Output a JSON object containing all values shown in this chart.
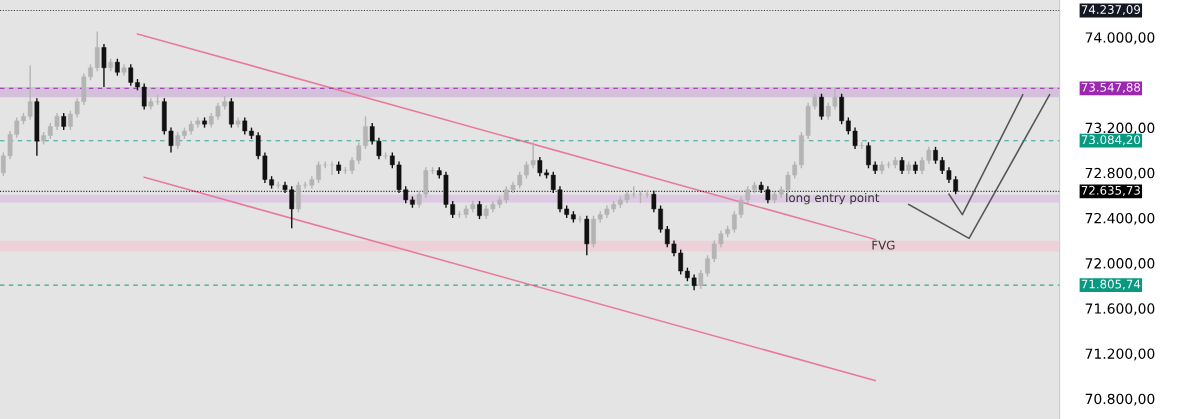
{
  "chart_data": {
    "type": "candlestick",
    "categories": [
      null,
      null,
      null,
      null,
      null,
      null,
      null,
      null,
      null,
      null,
      null,
      null,
      null,
      null,
      null,
      null,
      null,
      null,
      null,
      null,
      null,
      null,
      null,
      null,
      null,
      null,
      null,
      null,
      null,
      null,
      null,
      null,
      null,
      null,
      null,
      null,
      null,
      null,
      null,
      null,
      null,
      null,
      null,
      null,
      null,
      null,
      null,
      null,
      null,
      null,
      null,
      null,
      null,
      null,
      null,
      null,
      null,
      null,
      null,
      null,
      null,
      null,
      null,
      null,
      null,
      null,
      null,
      null,
      null,
      null,
      null,
      null,
      null,
      null,
      null,
      null,
      null,
      null,
      null,
      null,
      null,
      null,
      null,
      null,
      null,
      null,
      null,
      null,
      null,
      null,
      null,
      null,
      null,
      null,
      null,
      null,
      null,
      null,
      null,
      null,
      null,
      null,
      null,
      null,
      null,
      null,
      null,
      null,
      null,
      null,
      null,
      null,
      null,
      null,
      null,
      null,
      null,
      null,
      null,
      null,
      null,
      null,
      null,
      null,
      null,
      null,
      null,
      null,
      null,
      null,
      null,
      null,
      null,
      null,
      null,
      null,
      null,
      null,
      null,
      null,
      null,
      null,
      null,
      null,
      null,
      null,
      null,
      null,
      null,
      null,
      null,
      null,
      null,
      null,
      null,
      null,
      null
    ],
    "ohlc": [
      [
        72800,
        72980,
        72770,
        72950
      ],
      [
        72950,
        73170,
        72920,
        73140
      ],
      [
        73140,
        73290,
        73110,
        73260
      ],
      [
        73260,
        73330,
        73230,
        73300
      ],
      [
        73300,
        73750,
        73270,
        73430
      ],
      [
        73430,
        73460,
        72950,
        73080
      ],
      [
        73080,
        73160,
        73050,
        73130
      ],
      [
        73130,
        73240,
        73100,
        73210
      ],
      [
        73210,
        73330,
        73180,
        73300
      ],
      [
        73300,
        73330,
        73180,
        73210
      ],
      [
        73210,
        73350,
        73180,
        73320
      ],
      [
        73320,
        73460,
        73290,
        73430
      ],
      [
        73430,
        73680,
        73400,
        73650
      ],
      [
        73650,
        73760,
        73620,
        73730
      ],
      [
        73730,
        74050,
        73700,
        73910
      ],
      [
        73910,
        73940,
        73560,
        73730
      ],
      [
        73730,
        73810,
        73700,
        73780
      ],
      [
        73780,
        73810,
        73660,
        73690
      ],
      [
        73690,
        73760,
        73660,
        73730
      ],
      [
        73730,
        73760,
        73570,
        73600
      ],
      [
        73600,
        73630,
        73530,
        73560
      ],
      [
        73560,
        73590,
        73360,
        73390
      ],
      [
        73390,
        73460,
        73360,
        73430
      ],
      [
        73430,
        73490,
        73400,
        73430
      ],
      [
        73430,
        73460,
        73140,
        73170
      ],
      [
        73170,
        73200,
        72980,
        73040
      ],
      [
        73040,
        73160,
        73010,
        73130
      ],
      [
        73130,
        73200,
        73100,
        73170
      ],
      [
        73170,
        73260,
        73140,
        73230
      ],
      [
        73230,
        73290,
        73200,
        73260
      ],
      [
        73260,
        73290,
        73200,
        73230
      ],
      [
        73230,
        73330,
        73200,
        73300
      ],
      [
        73300,
        73420,
        73270,
        73390
      ],
      [
        73390,
        73480,
        73360,
        73430
      ],
      [
        73430,
        73460,
        73200,
        73230
      ],
      [
        73230,
        73290,
        73200,
        73260
      ],
      [
        73260,
        73290,
        73140,
        73170
      ],
      [
        73170,
        73200,
        73100,
        73130
      ],
      [
        73130,
        73160,
        72920,
        72950
      ],
      [
        72950,
        72980,
        72710,
        72740
      ],
      [
        72740,
        72770,
        72660,
        72690
      ],
      [
        72690,
        72720,
        72660,
        72690
      ],
      [
        72690,
        72720,
        72620,
        72650
      ],
      [
        72650,
        72680,
        72310,
        72480
      ],
      [
        72480,
        72720,
        72450,
        72690
      ],
      [
        72690,
        72720,
        72660,
        72690
      ],
      [
        72690,
        72770,
        72660,
        72740
      ],
      [
        72740,
        72900,
        72710,
        72870
      ],
      [
        72870,
        72900,
        72840,
        72870
      ],
      [
        72870,
        72900,
        72780,
        72870
      ],
      [
        72870,
        72900,
        72790,
        72820
      ],
      [
        72820,
        72850,
        72790,
        72820
      ],
      [
        72820,
        72940,
        72790,
        72910
      ],
      [
        72910,
        73070,
        72880,
        73040
      ],
      [
        73040,
        73300,
        73010,
        73210
      ],
      [
        73210,
        73240,
        73050,
        73080
      ],
      [
        73080,
        73110,
        72920,
        72950
      ],
      [
        72950,
        72980,
        72920,
        72950
      ],
      [
        72950,
        72980,
        72840,
        72870
      ],
      [
        72870,
        72900,
        72620,
        72650
      ],
      [
        72650,
        72680,
        72530,
        72560
      ],
      [
        72560,
        72590,
        72490,
        72520
      ],
      [
        72520,
        72640,
        72490,
        72610
      ],
      [
        72610,
        72850,
        72580,
        72820
      ],
      [
        72820,
        72850,
        72790,
        72820
      ],
      [
        72820,
        72850,
        72750,
        72780
      ],
      [
        72780,
        72810,
        72490,
        72520
      ],
      [
        72520,
        72550,
        72400,
        72430
      ],
      [
        72430,
        72460,
        72400,
        72430
      ],
      [
        72430,
        72510,
        72400,
        72480
      ],
      [
        72480,
        72550,
        72450,
        72520
      ],
      [
        72520,
        72550,
        72390,
        72420
      ],
      [
        72420,
        72510,
        72390,
        72480
      ],
      [
        72480,
        72550,
        72450,
        72520
      ],
      [
        72520,
        72590,
        72490,
        72560
      ],
      [
        72560,
        72680,
        72530,
        72650
      ],
      [
        72650,
        72720,
        72620,
        72690
      ],
      [
        72690,
        72810,
        72660,
        72780
      ],
      [
        72780,
        72900,
        72750,
        72870
      ],
      [
        72870,
        73070,
        72840,
        72910
      ],
      [
        72910,
        72940,
        72770,
        72800
      ],
      [
        72800,
        72830,
        72750,
        72780
      ],
      [
        72780,
        72810,
        72620,
        72650
      ],
      [
        72650,
        72680,
        72450,
        72480
      ],
      [
        72480,
        72510,
        72400,
        72430
      ],
      [
        72430,
        72460,
        72360,
        72390
      ],
      [
        72390,
        72420,
        72360,
        72390
      ],
      [
        72390,
        72420,
        72070,
        72170
      ],
      [
        72170,
        72420,
        72140,
        72390
      ],
      [
        72390,
        72460,
        72360,
        72430
      ],
      [
        72430,
        72510,
        72400,
        72480
      ],
      [
        72480,
        72550,
        72450,
        72520
      ],
      [
        72520,
        72590,
        72490,
        72560
      ],
      [
        72560,
        72640,
        72530,
        72610
      ],
      [
        72610,
        72680,
        72580,
        72610
      ],
      [
        72610,
        72640,
        72530,
        72610
      ],
      [
        72610,
        72640,
        72580,
        72610
      ],
      [
        72610,
        72640,
        72450,
        72480
      ],
      [
        72480,
        72510,
        72270,
        72300
      ],
      [
        72300,
        72330,
        72140,
        72170
      ],
      [
        72170,
        72200,
        72060,
        72090
      ],
      [
        72090,
        72120,
        71900,
        71930
      ],
      [
        71930,
        71960,
        71840,
        71870
      ],
      [
        71870,
        71900,
        71760,
        71800
      ],
      [
        71800,
        71940,
        71770,
        71910
      ],
      [
        71910,
        72070,
        71880,
        72040
      ],
      [
        72040,
        72200,
        72010,
        72170
      ],
      [
        72170,
        72290,
        72140,
        72260
      ],
      [
        72260,
        72330,
        72230,
        72300
      ],
      [
        72300,
        72460,
        72270,
        72430
      ],
      [
        72430,
        72590,
        72400,
        72560
      ],
      [
        72560,
        72680,
        72530,
        72650
      ],
      [
        72650,
        72720,
        72620,
        72690
      ],
      [
        72690,
        72720,
        72620,
        72650
      ],
      [
        72650,
        72680,
        72530,
        72560
      ],
      [
        72560,
        72640,
        72530,
        72610
      ],
      [
        72610,
        72680,
        72580,
        72650
      ],
      [
        72650,
        72810,
        72620,
        72780
      ],
      [
        72780,
        72900,
        72750,
        72870
      ],
      [
        72870,
        73160,
        72840,
        73130
      ],
      [
        73130,
        73420,
        73100,
        73390
      ],
      [
        73390,
        73500,
        73360,
        73470
      ],
      [
        73470,
        73500,
        73270,
        73300
      ],
      [
        73300,
        73420,
        73270,
        73390
      ],
      [
        73390,
        73550,
        73360,
        73470
      ],
      [
        73470,
        73500,
        73230,
        73260
      ],
      [
        73260,
        73290,
        73140,
        73170
      ],
      [
        73170,
        73200,
        73010,
        73040
      ],
      [
        73040,
        73070,
        73010,
        73040
      ],
      [
        73040,
        73070,
        72840,
        72870
      ],
      [
        72870,
        72900,
        72790,
        72820
      ],
      [
        72820,
        72900,
        72790,
        72870
      ],
      [
        72870,
        72900,
        72840,
        72870
      ],
      [
        72870,
        72940,
        72840,
        72910
      ],
      [
        72910,
        72940,
        72790,
        72820
      ],
      [
        72820,
        72900,
        72790,
        72870
      ],
      [
        72870,
        72900,
        72790,
        72820
      ],
      [
        72820,
        72940,
        72790,
        72910
      ],
      [
        72910,
        73030,
        72880,
        73000
      ],
      [
        73000,
        73030,
        72880,
        72910
      ],
      [
        72910,
        72940,
        72790,
        72820
      ],
      [
        72820,
        72850,
        72710,
        72740
      ],
      [
        72740,
        72770,
        72610,
        72636
      ],
      null,
      null,
      null,
      null,
      null,
      null,
      null,
      null,
      null,
      null,
      null,
      null,
      null,
      null
    ],
    "series": [
      {
        "type": "line",
        "color": "#e8799a",
        "values": [
          null,
          null,
          null,
          null,
          null,
          null,
          null,
          null,
          null,
          null,
          null,
          null,
          null,
          null,
          null,
          null,
          null,
          null,
          null,
          null,
          74030,
          null,
          null,
          null,
          null,
          null,
          null,
          null,
          null,
          null,
          null,
          null,
          null,
          null,
          null,
          null,
          null,
          null,
          null,
          null,
          null,
          null,
          null,
          null,
          null,
          null,
          null,
          null,
          null,
          null,
          null,
          null,
          null,
          null,
          null,
          null,
          null,
          null,
          null,
          null,
          null,
          null,
          null,
          null,
          null,
          null,
          null,
          null,
          null,
          null,
          null,
          null,
          null,
          null,
          null,
          null,
          null,
          null,
          null,
          null,
          null,
          null,
          null,
          null,
          null,
          null,
          null,
          null,
          null,
          null,
          null,
          null,
          null,
          null,
          null,
          null,
          null,
          null,
          null,
          null,
          null,
          null,
          null,
          null,
          null,
          null,
          null,
          null,
          null,
          null,
          null,
          null,
          null,
          null,
          null,
          null,
          null,
          null,
          null,
          null,
          null,
          null,
          null,
          null,
          null,
          null,
          null,
          null,
          null,
          null,
          72210,
          null,
          null,
          null,
          null,
          null,
          null,
          null,
          null,
          null,
          null,
          null,
          null,
          null,
          null,
          null,
          null,
          null,
          null,
          null,
          null,
          null,
          null,
          null,
          null,
          null,
          null
        ]
      },
      {
        "type": "line",
        "color": "#e8799a",
        "values": [
          null,
          null,
          null,
          null,
          null,
          null,
          null,
          null,
          null,
          null,
          null,
          null,
          null,
          null,
          null,
          null,
          null,
          null,
          null,
          null,
          null,
          72760,
          null,
          null,
          null,
          null,
          null,
          null,
          null,
          null,
          null,
          null,
          null,
          null,
          null,
          null,
          null,
          null,
          null,
          null,
          null,
          null,
          null,
          null,
          null,
          null,
          null,
          null,
          null,
          null,
          null,
          null,
          null,
          null,
          null,
          null,
          null,
          null,
          null,
          null,
          null,
          null,
          null,
          null,
          null,
          null,
          null,
          null,
          null,
          null,
          null,
          null,
          null,
          null,
          null,
          null,
          null,
          null,
          null,
          null,
          null,
          null,
          null,
          null,
          null,
          null,
          null,
          null,
          null,
          null,
          null,
          null,
          null,
          null,
          null,
          null,
          null,
          null,
          null,
          null,
          null,
          null,
          null,
          null,
          null,
          null,
          null,
          null,
          null,
          null,
          null,
          null,
          null,
          null,
          null,
          null,
          null,
          null,
          null,
          null,
          null,
          null,
          null,
          null,
          null,
          null,
          null,
          null,
          null,
          null,
          70960,
          null,
          null,
          null,
          null,
          null,
          null,
          null,
          null,
          null,
          null,
          null,
          null,
          null,
          null,
          null,
          null,
          null,
          null,
          null,
          null,
          null,
          null,
          null,
          null,
          null,
          null
        ]
      },
      {
        "type": "line",
        "color": "#555555",
        "values": [
          null,
          null,
          null,
          null,
          null,
          null,
          null,
          null,
          null,
          null,
          null,
          null,
          null,
          null,
          null,
          null,
          null,
          null,
          null,
          null,
          null,
          null,
          null,
          null,
          null,
          null,
          null,
          null,
          null,
          null,
          null,
          null,
          null,
          null,
          null,
          null,
          null,
          null,
          null,
          null,
          null,
          null,
          null,
          null,
          null,
          null,
          null,
          null,
          null,
          null,
          null,
          null,
          null,
          null,
          null,
          null,
          null,
          null,
          null,
          null,
          null,
          null,
          null,
          null,
          null,
          null,
          null,
          null,
          null,
          null,
          null,
          null,
          null,
          null,
          null,
          null,
          null,
          null,
          null,
          null,
          null,
          null,
          null,
          null,
          null,
          null,
          null,
          null,
          null,
          null,
          null,
          null,
          null,
          null,
          null,
          null,
          null,
          null,
          null,
          null,
          null,
          null,
          null,
          null,
          null,
          null,
          null,
          null,
          null,
          null,
          null,
          null,
          null,
          null,
          null,
          null,
          null,
          null,
          null,
          null,
          null,
          null,
          null,
          null,
          null,
          null,
          null,
          null,
          null,
          null,
          null,
          null,
          null,
          null,
          null,
          null,
          null,
          null,
          null,
          null,
          null,
          72610,
          null,
          72430,
          null,
          null,
          null,
          null,
          null,
          null,
          null,
          null,
          73490,
          null,
          null,
          null,
          null
        ]
      },
      {
        "type": "line",
        "color": "#555555",
        "values": [
          null,
          null,
          null,
          null,
          null,
          null,
          null,
          null,
          null,
          null,
          null,
          null,
          null,
          null,
          null,
          null,
          null,
          null,
          null,
          null,
          null,
          null,
          null,
          null,
          null,
          null,
          null,
          null,
          null,
          null,
          null,
          null,
          null,
          null,
          null,
          null,
          null,
          null,
          null,
          null,
          null,
          null,
          null,
          null,
          null,
          null,
          null,
          null,
          null,
          null,
          null,
          null,
          null,
          null,
          null,
          null,
          null,
          null,
          null,
          null,
          null,
          null,
          null,
          null,
          null,
          null,
          null,
          null,
          null,
          null,
          null,
          null,
          null,
          null,
          null,
          null,
          null,
          null,
          null,
          null,
          null,
          null,
          null,
          null,
          null,
          null,
          null,
          null,
          null,
          null,
          null,
          null,
          null,
          null,
          null,
          null,
          null,
          null,
          null,
          null,
          null,
          null,
          null,
          null,
          null,
          null,
          null,
          null,
          null,
          null,
          null,
          null,
          null,
          null,
          null,
          null,
          null,
          null,
          null,
          null,
          null,
          null,
          null,
          null,
          null,
          null,
          null,
          null,
          null,
          null,
          null,
          null,
          null,
          null,
          null,
          72520,
          null,
          null,
          null,
          null,
          null,
          null,
          null,
          null,
          72220,
          null,
          null,
          null,
          null,
          null,
          null,
          null,
          null,
          null,
          null,
          null,
          73490
        ]
      }
    ],
    "bands": [
      {
        "axis": "y",
        "from": 73470,
        "to": 73560,
        "color": "#c9a8d6"
      },
      {
        "axis": "y",
        "from": 72536,
        "to": 72606,
        "color": "#d8b8e2",
        "label": "long entry point"
      },
      {
        "axis": "y",
        "from": 72103,
        "to": 72198,
        "color": "#f2c4d2",
        "label": "FVG"
      }
    ],
    "ref_lines": [
      {
        "axis": "y",
        "value": 74237.09,
        "label": "74.237,09",
        "color": "#131722",
        "line_style": "dotted"
      },
      {
        "axis": "y",
        "value": 73547.88,
        "label": "73.547,88",
        "color": "#9c27b0",
        "line_style": "dashed"
      },
      {
        "axis": "y",
        "value": 73084.2,
        "label": "73.084,20",
        "color": "#089981",
        "line_style": "dashed"
      },
      {
        "axis": "y",
        "value": 72635.73,
        "label": "72.635,73",
        "color": "#000000",
        "line_style": "dotted"
      },
      {
        "axis": "y",
        "value": 71805.74,
        "label": "71.805,74",
        "color": "#089981",
        "line_style": "dashed"
      }
    ],
    "ylim": [
      70620,
      74330
    ],
    "yticks": [
      {
        "value": 70800,
        "label": "70.800,00"
      },
      {
        "value": 71200,
        "label": "71.200,00"
      },
      {
        "value": 71600,
        "label": "71.600,00"
      },
      {
        "value": 72000,
        "label": "72.000,00"
      },
      {
        "value": 72400,
        "label": "72.400,00"
      },
      {
        "value": 72800,
        "label": "72.800,00"
      },
      {
        "value": 73200,
        "label": "73.200,00"
      },
      {
        "value": 74000,
        "label": "74.000,00"
      }
    ],
    "tick_labels": "y",
    "grid": false
  }
}
